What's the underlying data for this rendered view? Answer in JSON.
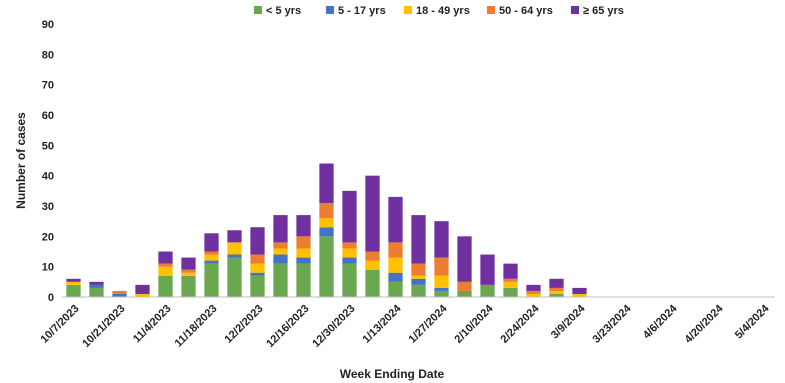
{
  "chart_data": {
    "type": "bar",
    "stacked": true,
    "title": "",
    "xlabel": "Week Ending Date",
    "ylabel": "Number of cases",
    "ylim": [
      0,
      90
    ],
    "yticks": [
      0,
      10,
      20,
      30,
      40,
      50,
      60,
      70,
      80,
      90
    ],
    "grid": false,
    "legend": "top-center",
    "categories": [
      "10/7/2023",
      "10/14/2023",
      "10/21/2023",
      "10/28/2023",
      "11/4/2023",
      "11/11/2023",
      "11/18/2023",
      "11/25/2023",
      "12/2/2023",
      "12/9/2023",
      "12/16/2023",
      "12/23/2023",
      "12/30/2023",
      "1/6/2024",
      "1/13/2024",
      "1/20/2024",
      "1/27/2024",
      "2/3/2024",
      "2/10/2024",
      "2/17/2024",
      "2/24/2024",
      "3/2/2024",
      "3/9/2024",
      "3/16/2024",
      "3/23/2024",
      "3/30/2024",
      "4/6/2024",
      "4/13/2024",
      "4/20/2024",
      "4/27/2024",
      "5/4/2024"
    ],
    "tick_labels": [
      "10/7/2023",
      "10/21/2023",
      "11/4/2023",
      "11/18/2023",
      "12/2/2023",
      "12/16/2023",
      "12/30/2023",
      "1/13/2024",
      "1/27/2024",
      "2/10/2024",
      "2/24/2024",
      "3/9/2024",
      "3/23/2024",
      "4/6/2024",
      "4/20/2024",
      "5/4/2024"
    ],
    "series": [
      {
        "name": "< 5 yrs",
        "color": "#6aa84f",
        "values": [
          4,
          3,
          0,
          0,
          7,
          7,
          11,
          13,
          7,
          11,
          11,
          20,
          11,
          9,
          5,
          4,
          2,
          2,
          4,
          3,
          0,
          1,
          0,
          0,
          0,
          0,
          0,
          0,
          0,
          0,
          0
        ]
      },
      {
        "name": "5 - 17 yrs",
        "color": "#4472c4",
        "values": [
          0,
          1,
          1,
          0,
          0,
          0,
          1,
          1,
          1,
          3,
          2,
          3,
          2,
          0,
          3,
          2,
          1,
          0,
          0,
          0,
          0,
          0,
          0,
          0,
          0,
          0,
          0,
          0,
          0,
          0,
          0
        ]
      },
      {
        "name": "18 - 49 yrs",
        "color": "#ffc000",
        "values": [
          1,
          0,
          0,
          1,
          3,
          1,
          2,
          4,
          3,
          2,
          3,
          3,
          3,
          3,
          5,
          1,
          4,
          0,
          0,
          2,
          1,
          1,
          1,
          0,
          0,
          0,
          0,
          0,
          0,
          0,
          0
        ]
      },
      {
        "name": "50 - 64 yrs",
        "color": "#ed7d31",
        "values": [
          0,
          0,
          1,
          0,
          1,
          1,
          1,
          0,
          3,
          2,
          4,
          5,
          2,
          3,
          5,
          4,
          6,
          3,
          0,
          1,
          1,
          1,
          0,
          0,
          0,
          0,
          0,
          0,
          0,
          0,
          0
        ]
      },
      {
        "name": "≥ 65 yrs",
        "color": "#7030a0",
        "values": [
          1,
          1,
          0,
          3,
          4,
          4,
          6,
          4,
          9,
          9,
          7,
          13,
          17,
          25,
          15,
          16,
          12,
          15,
          10,
          5,
          2,
          3,
          2,
          0,
          0,
          0,
          0,
          0,
          0,
          0,
          0
        ]
      }
    ]
  }
}
